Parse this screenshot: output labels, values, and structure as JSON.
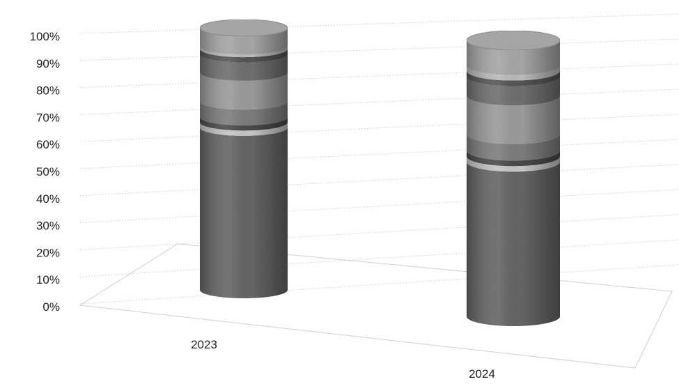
{
  "chart_data": {
    "type": "bar",
    "style": "3d-stacked-cylinder-100-percent",
    "title": "",
    "xlabel": "",
    "ylabel": "",
    "ylim": [
      0,
      100
    ],
    "y_ticks": [
      "0%",
      "10%",
      "20%",
      "30%",
      "40%",
      "50%",
      "60%",
      "70%",
      "80%",
      "90%",
      "100%"
    ],
    "categories": [
      "2023",
      "2024"
    ],
    "grid": true,
    "legend": "none",
    "series": [
      {
        "values": [
          62,
          56
        ],
        "color": "#666666"
      },
      {
        "values": [
          2,
          2
        ],
        "color": "#c8c8c8"
      },
      {
        "values": [
          2,
          2
        ],
        "color": "#4a4a4a"
      },
      {
        "values": [
          6,
          6
        ],
        "color": "#7e7e7e"
      },
      {
        "values": [
          11,
          14
        ],
        "color": "#9c9c9c"
      },
      {
        "values": [
          7,
          7
        ],
        "color": "#707070"
      },
      {
        "values": [
          2,
          2
        ],
        "color": "#555555"
      },
      {
        "values": [
          1,
          2
        ],
        "color": "#bdbdbd"
      },
      {
        "values": [
          7,
          9
        ],
        "color": "#a8a8a8"
      }
    ]
  }
}
